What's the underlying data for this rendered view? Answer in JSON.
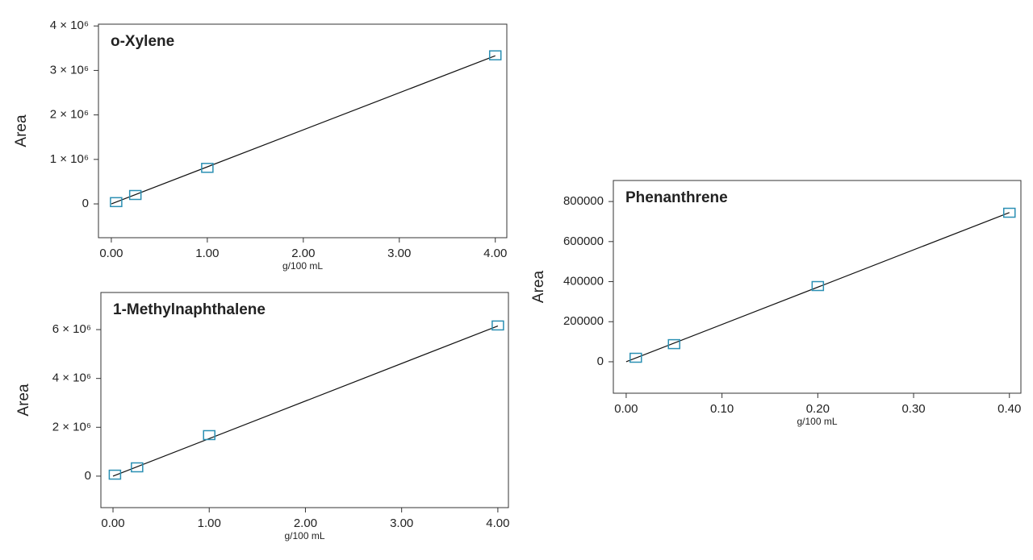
{
  "chart_data": [
    {
      "type": "scatter",
      "title": "o-Xylene",
      "x_label": "g/100 mL",
      "y_label": "Area",
      "series": [
        {
          "color": "#2a8fb3",
          "x": [
            0.05,
            0.25,
            1.0,
            4.0
          ],
          "values": [
            40000,
            200000,
            810000,
            3340000
          ]
        }
      ],
      "fit": {
        "color": "#111111",
        "x": [
          0,
          4
        ],
        "values": [
          0,
          3330000
        ]
      },
      "xlim": [
        -0.134,
        4.12
      ],
      "ylim": [
        -760000,
        4040000
      ],
      "xticks": [
        {
          "value": 0,
          "label": "0.00"
        },
        {
          "value": 1,
          "label": "1.00"
        },
        {
          "value": 2,
          "label": "2.00"
        },
        {
          "value": 3,
          "label": "3.00"
        },
        {
          "value": 4,
          "label": "4.00"
        }
      ],
      "yticks": [
        0,
        {
          "value": 1000000,
          "label": "1 × 10⁶"
        },
        {
          "value": 2000000,
          "label": "2 × 10⁶"
        },
        {
          "value": 3000000,
          "label": "3 × 10⁶"
        },
        {
          "value": 4000000,
          "label": "4 × 10⁶"
        }
      ]
    },
    {
      "type": "scatter",
      "title": "1-Methylnaphthalene",
      "x_label": "g/100 mL",
      "y_label": "Area",
      "series": [
        {
          "color": "#2a8fb3",
          "x": [
            0.02,
            0.25,
            1.0,
            4.0
          ],
          "values": [
            60000,
            360000,
            1680000,
            6170000
          ]
        }
      ],
      "fit": {
        "color": "#111111",
        "x": [
          0,
          4
        ],
        "values": [
          0,
          6150000
        ]
      },
      "xlim": [
        -0.126,
        4.11
      ],
      "ylim": [
        -1290000,
        7520000
      ],
      "xticks": [
        {
          "value": 0,
          "label": "0.00"
        },
        {
          "value": 1,
          "label": "1.00"
        },
        {
          "value": 2,
          "label": "2.00"
        },
        {
          "value": 3,
          "label": "3.00"
        },
        {
          "value": 4,
          "label": "4.00"
        }
      ],
      "yticks": [
        0,
        {
          "value": 2000000,
          "label": "2 × 10⁶"
        },
        {
          "value": 4000000,
          "label": "4 × 10⁶"
        },
        {
          "value": 6000000,
          "label": "6 × 10⁶"
        }
      ]
    },
    {
      "type": "scatter",
      "title": "Phenanthrene",
      "x_label": "g/100 mL",
      "y_label": "Area",
      "series": [
        {
          "color": "#2a8fb3",
          "x": [
            0.01,
            0.05,
            0.2,
            0.4
          ],
          "values": [
            20000,
            88000,
            378000,
            744000
          ]
        }
      ],
      "fit": {
        "color": "#111111",
        "x": [
          0,
          0.4
        ],
        "values": [
          0,
          745000
        ]
      },
      "xlim": [
        -0.0134,
        0.412
      ],
      "ylim": [
        -157000,
        905000
      ],
      "xticks": [
        {
          "value": 0,
          "label": "0.00"
        },
        {
          "value": 0.1,
          "label": "0.10"
        },
        {
          "value": 0.2,
          "label": "0.20"
        },
        {
          "value": 0.3,
          "label": "0.30"
        },
        {
          "value": 0.4,
          "label": "0.40"
        }
      ],
      "yticks": [
        0,
        200000,
        400000,
        600000,
        800000
      ]
    }
  ]
}
